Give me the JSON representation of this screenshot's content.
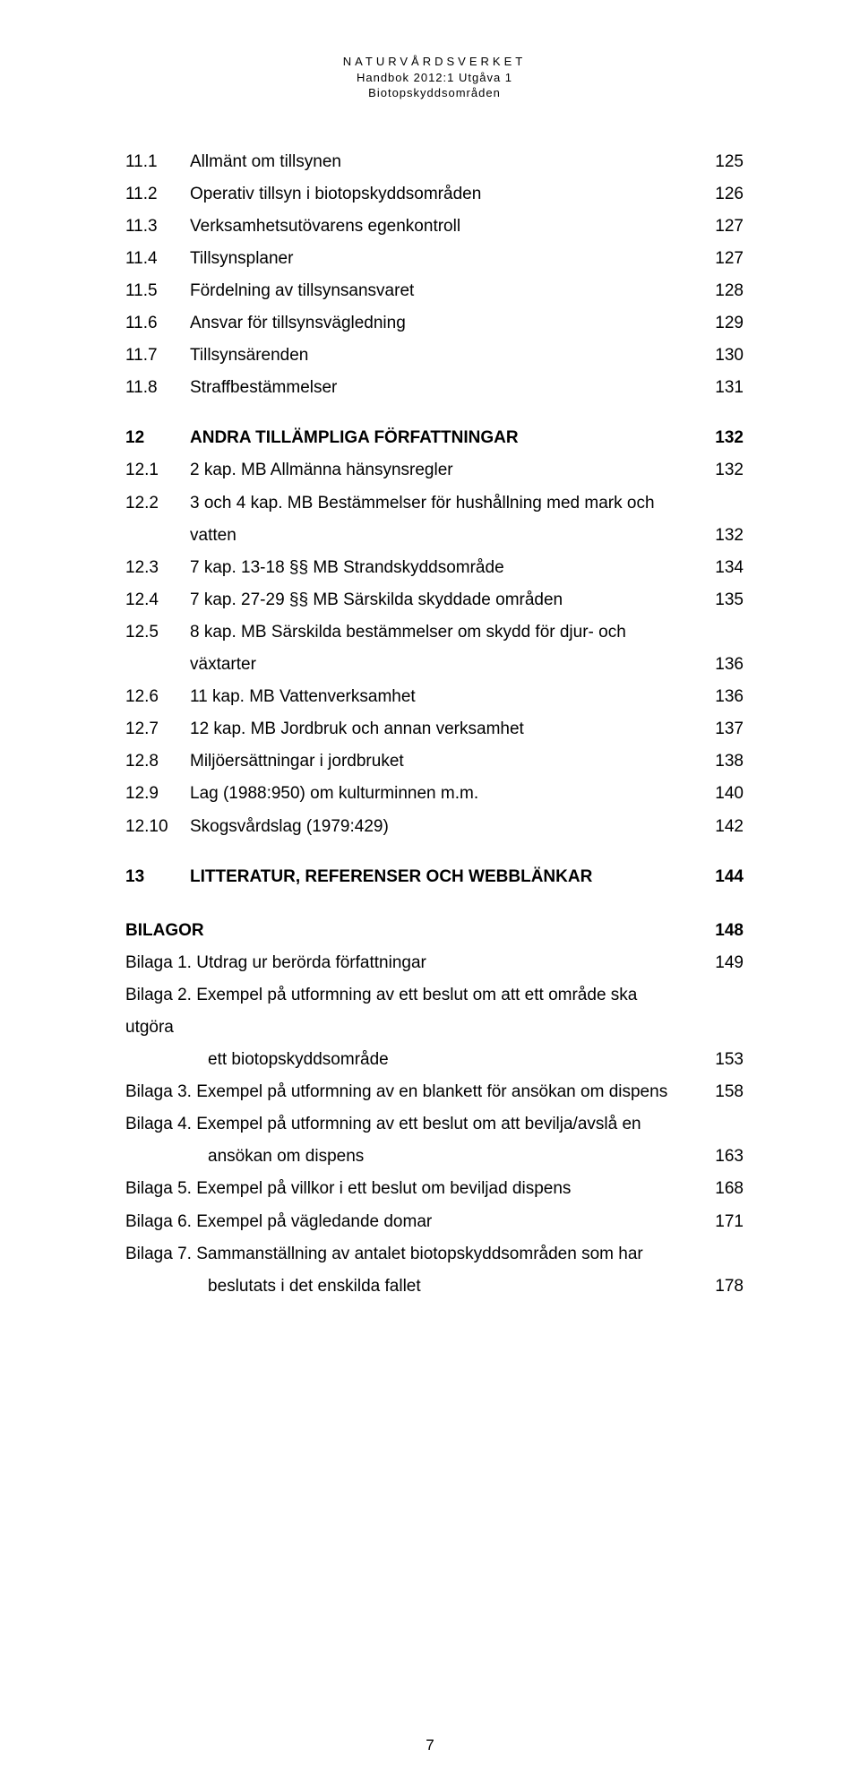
{
  "header": {
    "line1": "NATURVÅRDSVERKET",
    "line2": "Handbok 2012:1 Utgåva 1",
    "line3": "Biotopskyddsområden"
  },
  "rows": [
    {
      "type": "item",
      "num": "11.1",
      "title": "Allmänt om tillsynen",
      "page": "125"
    },
    {
      "type": "item",
      "num": "11.2",
      "title": "Operativ tillsyn i biotopskyddsområden",
      "page": "126"
    },
    {
      "type": "item",
      "num": "11.3",
      "title": "Verksamhetsutövarens egenkontroll",
      "page": "127"
    },
    {
      "type": "item",
      "num": "11.4",
      "title": "Tillsynsplaner",
      "page": "127"
    },
    {
      "type": "item",
      "num": "11.5",
      "title": "Fördelning av tillsynsansvaret",
      "page": "128"
    },
    {
      "type": "item",
      "num": "11.6",
      "title": "Ansvar för tillsynsvägledning",
      "page": "129"
    },
    {
      "type": "item",
      "num": "11.7",
      "title": "Tillsynsärenden",
      "page": "130"
    },
    {
      "type": "item",
      "num": "11.8",
      "title": "Straffbestämmelser",
      "page": "131"
    },
    {
      "type": "heading",
      "num": "12",
      "title": "ANDRA TILLÄMPLIGA FÖRFATTNINGAR",
      "page": "132"
    },
    {
      "type": "item",
      "num": "12.1",
      "title": "2 kap. MB Allmänna hänsynsregler",
      "page": "132"
    },
    {
      "type": "wrap",
      "num": "12.2",
      "line1": "3 och 4 kap. MB Bestämmelser för hushållning med mark och",
      "line2": "vatten",
      "page": "132"
    },
    {
      "type": "item",
      "num": "12.3",
      "title": "7 kap. 13-18 §§ MB Strandskyddsområde",
      "page": "134"
    },
    {
      "type": "item",
      "num": "12.4",
      "title": "7 kap. 27-29 §§ MB Särskilda skyddade områden",
      "page": "135"
    },
    {
      "type": "wrap",
      "num": "12.5",
      "line1": "8 kap. MB Särskilda bestämmelser om skydd för djur- och",
      "line2": "växtarter",
      "page": "136"
    },
    {
      "type": "item",
      "num": "12.6",
      "title": "11 kap. MB Vattenverksamhet",
      "page": "136"
    },
    {
      "type": "item",
      "num": "12.7",
      "title": "12 kap. MB Jordbruk och annan verksamhet",
      "page": "137"
    },
    {
      "type": "item",
      "num": "12.8",
      "title": "Miljöersättningar i jordbruket",
      "page": "138"
    },
    {
      "type": "item",
      "num": "12.9",
      "title": "Lag (1988:950) om kulturminnen m.m.",
      "page": "140"
    },
    {
      "type": "item",
      "num": "12.10",
      "title": "Skogsvårdslag (1979:429)",
      "page": "142"
    },
    {
      "type": "heading",
      "num": "13",
      "title": "LITTERATUR, REFERENSER OCH WEBBLÄNKAR",
      "page": "144"
    },
    {
      "type": "standalone",
      "num": "",
      "title": "BILAGOR",
      "page": "148"
    },
    {
      "type": "bilaga",
      "num": "",
      "title": "Bilaga 1. Utdrag ur berörda författningar",
      "page": "149"
    },
    {
      "type": "bilagawrap",
      "num": "",
      "line1": "Bilaga 2. Exempel på utformning av ett beslut om att ett område ska utgöra",
      "line2": "ett biotopskyddsområde",
      "page": "153"
    },
    {
      "type": "bilaga",
      "num": "",
      "title": "Bilaga 3. Exempel på utformning av en blankett för ansökan om dispens",
      "page": "158"
    },
    {
      "type": "bilagawrap",
      "num": "",
      "line1": "Bilaga 4. Exempel på utformning av ett beslut om att bevilja/avslå en",
      "line2": "ansökan om dispens",
      "page": "163"
    },
    {
      "type": "bilaga",
      "num": "",
      "title": "Bilaga 5. Exempel på villkor i ett beslut om beviljad dispens",
      "page": "168"
    },
    {
      "type": "bilaga",
      "num": "",
      "title": "Bilaga 6. Exempel på vägledande domar",
      "page": "171"
    },
    {
      "type": "bilagawrap",
      "num": "",
      "line1": "Bilaga 7. Sammanställning av antalet biotopskyddsområden som har",
      "line2": "beslutats i det enskilda fallet",
      "page": "178"
    }
  ],
  "footer": {
    "pagenum": "7"
  }
}
